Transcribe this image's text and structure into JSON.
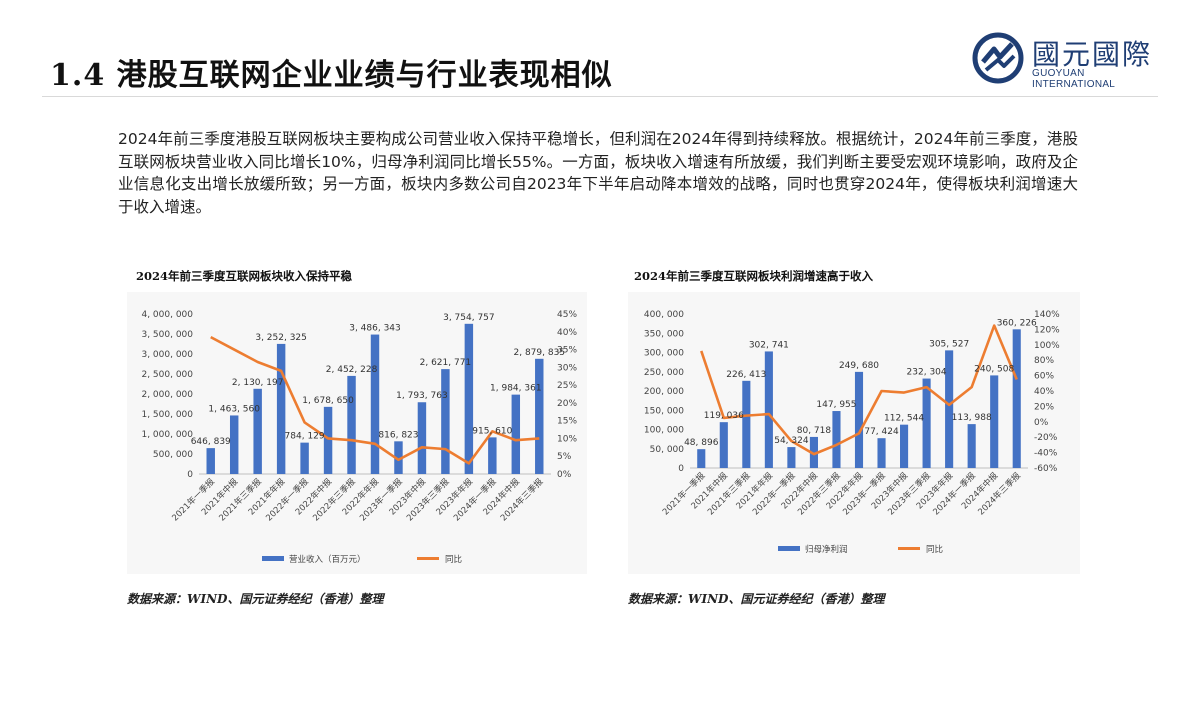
{
  "page": {
    "title": "1.4 港股互联网企业业绩与行业表现相似",
    "paragraph": "2024年前三季度港股互联网板块主要构成公司营业收入保持平稳增长，但利润在2024年得到持续释放。根据统计，2024年前三季度，港股互联网板块营业收入同比增长10%，归母净利润同比增长55%。一方面，板块收入增速有所放缓，我们判断主要受宏观环境影响，政府及企业信息化支出增长放缓所致；另一方面，板块内多数公司自2023年下半年启动降本增效的战略，同时也贯穿2024年，使得板块利润增速大于收入增速。"
  },
  "logo": {
    "cn": "國元國際",
    "en": "GUOYUAN INTERNATIONAL",
    "color": "#1f3e74"
  },
  "colors": {
    "bar": "#4472c4",
    "line": "#ed7d31"
  },
  "chart_data": [
    {
      "type": "bar+line",
      "title": "2024年前三季度互联网板块收入保持平稳",
      "source": "数据来源：WIND、国元证券经纪（香港）整理",
      "categories": [
        "2021年一季报",
        "2021年中报",
        "2021年三季报",
        "2021年年报",
        "2022年一季报",
        "2022年中报",
        "2022年三季报",
        "2022年年报",
        "2023年一季报",
        "2023年中报",
        "2023年三季报",
        "2023年年报",
        "2024年一季报",
        "2024年中报",
        "2024年三季报"
      ],
      "series": [
        {
          "name": "营业收入（百万元）",
          "kind": "bar",
          "axis": "left",
          "values": [
            646839,
            1463560,
            2130197,
            3252325,
            784129,
            1678650,
            2452228,
            3486343,
            816823,
            1793763,
            2621771,
            3754757,
            915610,
            1984361,
            2879835
          ],
          "labels": [
            "646, 839",
            "1, 463, 560",
            "2, 130, 197",
            "3, 252, 325",
            "784, 129",
            "1, 678, 650",
            "2, 452, 228",
            "3, 486, 343",
            "816, 823",
            "1, 793, 763",
            "2, 621, 771",
            "3, 754, 757",
            "915, 610",
            "1, 984, 361",
            "2, 879, 835"
          ]
        },
        {
          "name": "同比",
          "kind": "line",
          "axis": "right",
          "values": [
            38.5,
            35,
            31.5,
            29,
            14.5,
            10,
            9.5,
            8.5,
            4,
            7.5,
            7,
            3,
            12,
            9.5,
            10
          ]
        }
      ],
      "left_axis": {
        "min": 0,
        "max": 4000000,
        "step": 500000,
        "ticks": [
          "0",
          "500, 000",
          "1, 000, 000",
          "1, 500, 000",
          "2, 000, 000",
          "2, 500, 000",
          "3, 000, 000",
          "3, 500, 000",
          "4, 000, 000"
        ]
      },
      "right_axis": {
        "min": 0,
        "max": 45,
        "step": 5,
        "ticks": [
          "0%",
          "5%",
          "10%",
          "15%",
          "20%",
          "25%",
          "30%",
          "35%",
          "40%",
          "45%"
        ]
      },
      "legend_position": "bottom",
      "grid": false
    },
    {
      "type": "bar+line",
      "title": "2024年前三季度互联网板块利润增速高于收入",
      "source": "数据来源：WIND、国元证券经纪（香港）整理",
      "categories": [
        "2021年一季报",
        "2021年中报",
        "2021年三季报",
        "2021年年报",
        "2022年一季报",
        "2022年中报",
        "2022年三季报",
        "2022年年报",
        "2023年一季报",
        "2023年中报",
        "2023年三季报",
        "2023年年报",
        "2024年一季报",
        "2024年中报",
        "2024年三季报"
      ],
      "series": [
        {
          "name": "归母净利润",
          "kind": "bar",
          "axis": "left",
          "values": [
            48896,
            119036,
            226413,
            302741,
            54324,
            80718,
            147955,
            249680,
            77424,
            112544,
            232304,
            305527,
            113988,
            240508,
            360226
          ],
          "labels": [
            "48, 896",
            "119, 036",
            "226, 413",
            "302, 741",
            "54, 324",
            "80, 718",
            "147, 955",
            "249, 680",
            "77, 424",
            "112, 544",
            "232, 304",
            "305, 527",
            "113, 988",
            "240, 508",
            "360, 226"
          ]
        },
        {
          "name": "同比",
          "kind": "line",
          "axis": "right",
          "values": [
            92,
            5,
            8,
            10,
            -25,
            -42,
            -30,
            -15,
            40,
            38,
            45,
            22,
            45,
            125,
            55
          ]
        }
      ],
      "left_axis": {
        "min": 0,
        "max": 400000,
        "step": 50000,
        "ticks": [
          "0",
          "50, 000",
          "100, 000",
          "150, 000",
          "200, 000",
          "250, 000",
          "300, 000",
          "350, 000",
          "400, 000"
        ]
      },
      "right_axis": {
        "min": -60,
        "max": 140,
        "step": 20,
        "ticks": [
          "-60%",
          "-40%",
          "-20%",
          "0%",
          "20%",
          "40%",
          "60%",
          "80%",
          "100%",
          "120%",
          "140%"
        ]
      },
      "legend_position": "bottom",
      "grid": false
    }
  ]
}
